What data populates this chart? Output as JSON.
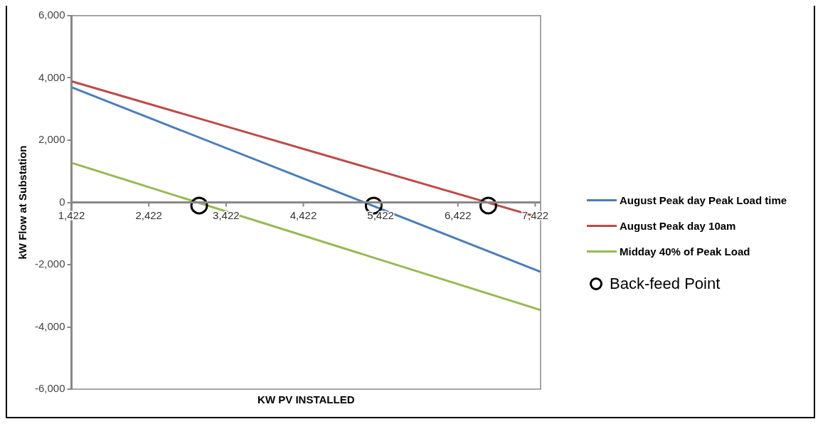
{
  "chart_data": {
    "type": "line",
    "xlabel": "KW PV INSTALLED",
    "ylabel": "kW Flow at Substation",
    "xlim": [
      1422,
      7492
    ],
    "xticks": [
      {
        "value": 1422,
        "label": "1,422"
      },
      {
        "value": 2422,
        "label": "2,422"
      },
      {
        "value": 3422,
        "label": "3,422"
      },
      {
        "value": 4422,
        "label": "4,422"
      },
      {
        "value": 5422,
        "label": "5,422"
      },
      {
        "value": 6422,
        "label": "6,422"
      },
      {
        "value": 7422,
        "label": "7,422"
      }
    ],
    "ylim": [
      -6000,
      6000
    ],
    "yticks": [
      {
        "value": -6000,
        "label": "-6,000"
      },
      {
        "value": -4000,
        "label": "-4,000"
      },
      {
        "value": -2000,
        "label": "-2,000"
      },
      0,
      {
        "value": 2000,
        "label": "2,000"
      },
      {
        "value": 4000,
        "label": "4,000"
      },
      {
        "value": 6000,
        "label": "6,000"
      }
    ],
    "legend": "right",
    "marker": "none",
    "series": [
      {
        "name": "August Peak day Peak Load time",
        "color": "#4a7ebb",
        "x": [
          1422,
          7492
        ],
        "values": [
          3700,
          -2230
        ]
      },
      {
        "name": "August Peak day 10am",
        "color": "#be4b48",
        "x": [
          1422,
          7492
        ],
        "values": [
          3890,
          -500
        ]
      },
      {
        "name": "Midday 40% of Peak Load",
        "color": "#98b954",
        "x": [
          1422,
          7492
        ],
        "values": [
          1270,
          -3460
        ]
      },
      {
        "name": "Back-feed Point",
        "type": "scatter",
        "marker": "circle",
        "color": "#000000",
        "x": [
          3074,
          5332,
          6815
        ],
        "values": [
          -100,
          -100,
          -100
        ]
      }
    ]
  }
}
